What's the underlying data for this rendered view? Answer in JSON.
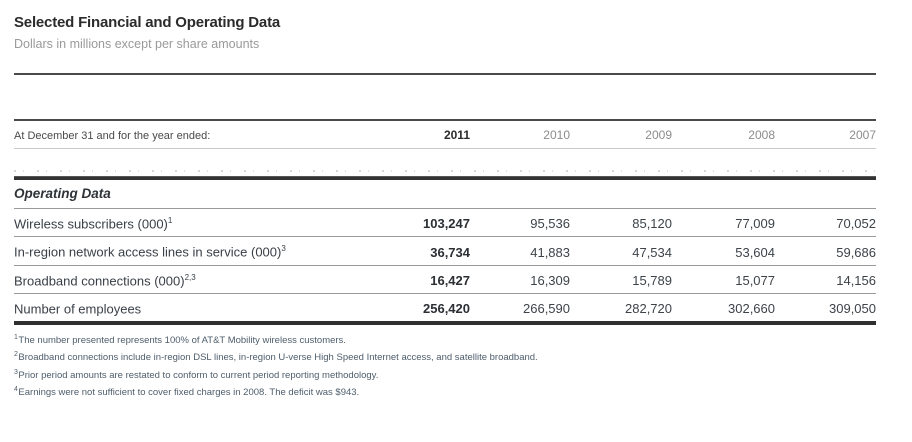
{
  "header": {
    "title": "Selected Financial and Operating Data",
    "subtitle": "Dollars in millions except per share amounts"
  },
  "table": {
    "header_label": "At December 31 and for the year ended:",
    "years": [
      "2011",
      "2010",
      "2009",
      "2008",
      "2007"
    ],
    "section_title": "Operating Data",
    "rows": [
      {
        "label": "Wireless subscribers (000)",
        "sup": "1",
        "values": [
          "103,247",
          "95,536",
          "85,120",
          "77,009",
          "70,052"
        ]
      },
      {
        "label": "In-region network access lines in service (000)",
        "sup": "3",
        "values": [
          "36,734",
          "41,883",
          "47,534",
          "53,604",
          "59,686"
        ]
      },
      {
        "label": "Broadband connections (000)",
        "sup": "2,3",
        "values": [
          "16,427",
          "16,309",
          "15,789",
          "15,077",
          "14,156"
        ]
      },
      {
        "label": "Number of employees",
        "sup": "",
        "values": [
          "256,420",
          "266,590",
          "282,720",
          "302,660",
          "309,050"
        ]
      }
    ]
  },
  "footnotes": [
    {
      "marker": "1",
      "text": "The number presented represents 100% of AT&T Mobility wireless customers."
    },
    {
      "marker": "2",
      "text": "Broadband connections include in-region DSL lines, in-region U-verse High Speed Internet access, and satellite broadband."
    },
    {
      "marker": "3",
      "text": "Prior period amounts are restated to conform to current period reporting methodology."
    },
    {
      "marker": "4",
      "text": "Earnings were not sufficient to cover fixed charges in 2008. The deficit was $943."
    }
  ],
  "chart_data": {
    "type": "table",
    "title": "Selected Financial and Operating Data",
    "section": "Operating Data",
    "columns": [
      "2011",
      "2010",
      "2009",
      "2008",
      "2007"
    ],
    "series": [
      {
        "name": "Wireless subscribers (000)",
        "values": [
          103247,
          95536,
          85120,
          77009,
          70052
        ]
      },
      {
        "name": "In-region network access lines in service (000)",
        "values": [
          36734,
          41883,
          47534,
          53604,
          59686
        ]
      },
      {
        "name": "Broadband connections (000)",
        "values": [
          16427,
          16309,
          15789,
          15077,
          14156
        ]
      },
      {
        "name": "Number of employees",
        "values": [
          256420,
          266590,
          282720,
          302660,
          309050
        ]
      }
    ]
  }
}
